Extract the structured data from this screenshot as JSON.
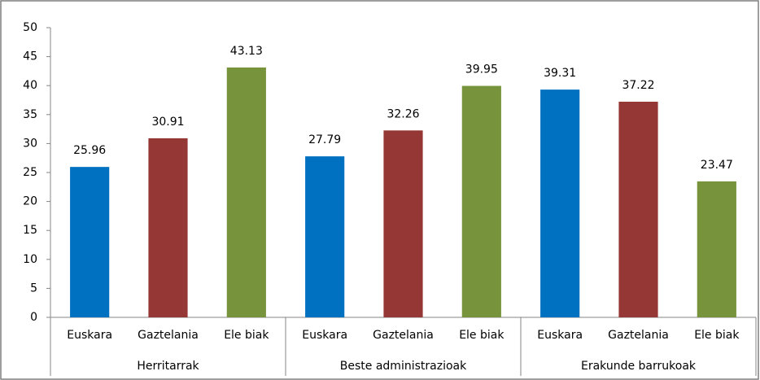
{
  "chart_data": {
    "type": "bar",
    "groups": [
      {
        "name": "Herritarrak",
        "categories": [
          "Euskara",
          "Gaztelania",
          "Ele biak"
        ],
        "values": [
          25.96,
          30.91,
          43.13
        ]
      },
      {
        "name": "Beste administrazioak",
        "categories": [
          "Euskara",
          "Gaztelania",
          "Ele biak"
        ],
        "values": [
          27.79,
          32.26,
          39.95
        ]
      },
      {
        "name": "Erakunde barrukoak",
        "categories": [
          "Euskara",
          "Gaztelania",
          "Ele biak"
        ],
        "values": [
          39.31,
          37.22,
          23.47
        ]
      }
    ],
    "colors": [
      "#0070c0",
      "#953735",
      "#77933c"
    ],
    "ylim": [
      0,
      50
    ],
    "yticks": [
      0,
      5,
      10,
      15,
      20,
      25,
      30,
      35,
      40,
      45,
      50
    ],
    "grid": false
  }
}
